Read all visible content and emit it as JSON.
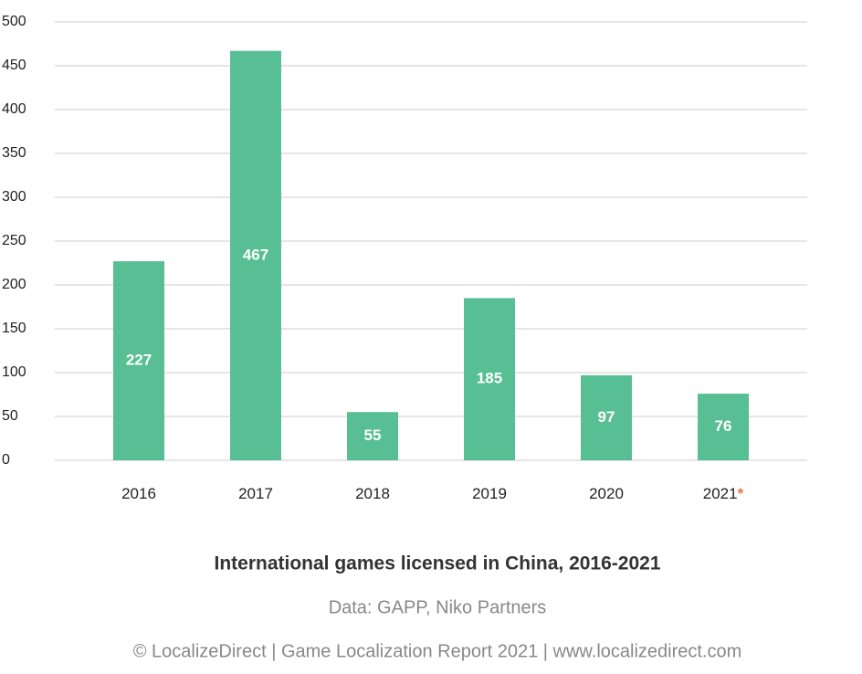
{
  "chart_data": {
    "type": "bar",
    "title": "International games licensed in China, 2016-2021",
    "source": "Data: GAPP, Niko Partners",
    "copyright": "© LocalizeDirect | Game Localization Report 2021 | www.localizedirect.com",
    "categories": [
      "2016",
      "2017",
      "2018",
      "2019",
      "2020",
      "2021"
    ],
    "note_marks": [
      null,
      null,
      null,
      null,
      null,
      "*"
    ],
    "note_color": "#e8704f",
    "values": [
      227,
      467,
      55,
      185,
      97,
      76
    ],
    "color": "#57bf93",
    "ylim": [
      0,
      500
    ],
    "yticks": [
      0,
      50,
      100,
      150,
      200,
      250,
      300,
      350,
      400,
      450,
      500
    ],
    "grid": true
  }
}
